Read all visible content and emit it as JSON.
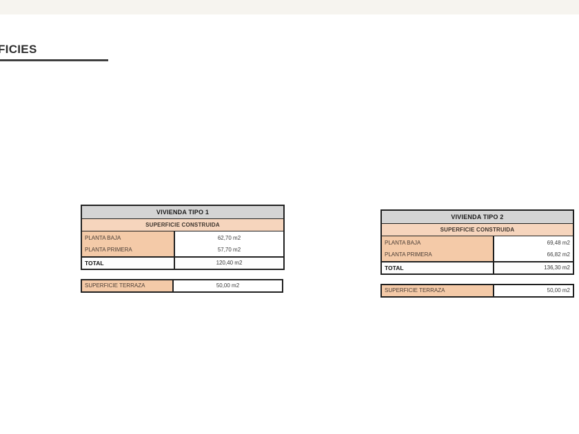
{
  "page": {
    "title": "FICIES"
  },
  "colors": {
    "header_bg": "#d4d4d4",
    "subheader_bg": "#f6d5bd",
    "label_bg": "#f4caa8",
    "border": "#1f1f1f",
    "top_band": "#f6f4ef"
  },
  "tables": [
    {
      "title": "VIVIENDA TIPO 1",
      "subtitle": "SUPERFICIE CONSTRUIDA",
      "rows": [
        {
          "label": "PLANTA BAJA",
          "value": "62,70 m2"
        },
        {
          "label": "PLANTA PRIMERA",
          "value": "57,70 m2"
        }
      ],
      "total": {
        "label": "TOTAL",
        "value": "120,40 m2"
      },
      "terrace": {
        "label": "SUPERFICIE TERRAZA",
        "value": "50,00 m2"
      }
    },
    {
      "title": "VIVIENDA TIPO 2",
      "subtitle": "SUPERFICIE CONSTRUIDA",
      "rows": [
        {
          "label": "PLANTA BAJA",
          "value": "69,48 m2"
        },
        {
          "label": "PLANTA PRIMERA",
          "value": "66,82 m2"
        }
      ],
      "total": {
        "label": "TOTAL",
        "value": "136,30 m2"
      },
      "terrace": {
        "label": "SUPERFICIE TERRAZA",
        "value": "50,00 m2"
      }
    }
  ]
}
